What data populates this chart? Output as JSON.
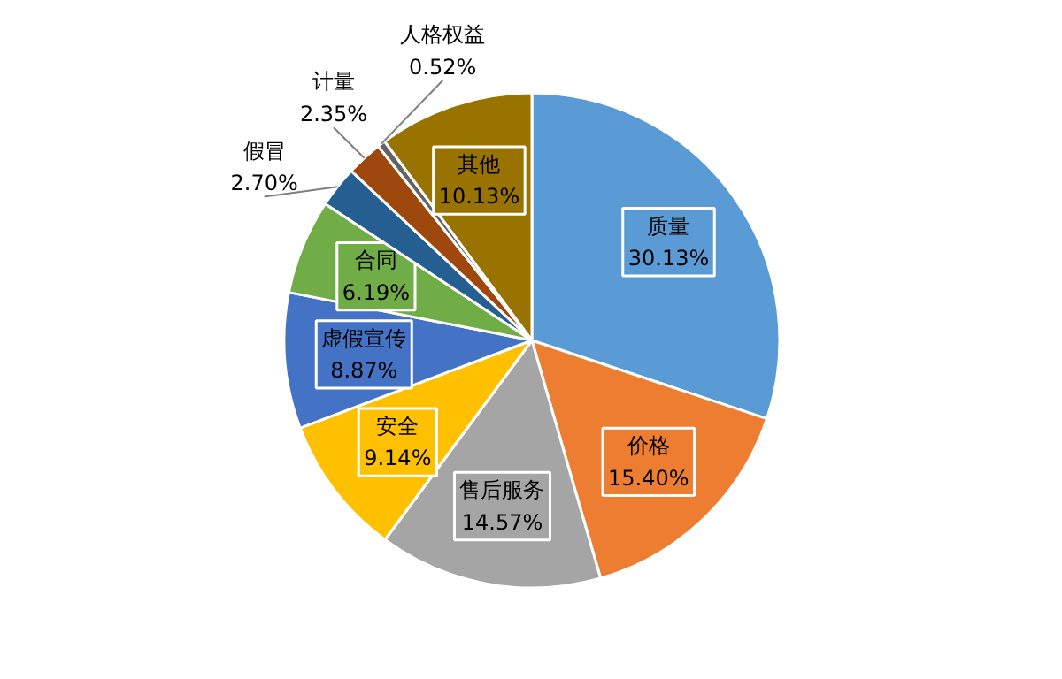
{
  "chart_data": {
    "type": "pie",
    "categories": [
      "质量",
      "价格",
      "售后服务",
      "安全",
      "虚假宣传",
      "合同",
      "假冒",
      "计量",
      "人格权益",
      "其他"
    ],
    "values": [
      30.13,
      15.4,
      14.57,
      9.14,
      8.87,
      6.19,
      2.7,
      2.35,
      0.52,
      10.13
    ],
    "value_labels": [
      "30.13%",
      "15.40%",
      "14.57%",
      "9.14%",
      "8.87%",
      "6.19%",
      "2.70%",
      "2.35%",
      "0.52%",
      "10.13%"
    ],
    "colors": [
      "#5b9bd5",
      "#ed7d31",
      "#a5a5a5",
      "#ffc000",
      "#4472c4",
      "#70ad47",
      "#255e91",
      "#9e480e",
      "#636363",
      "#997300"
    ]
  }
}
